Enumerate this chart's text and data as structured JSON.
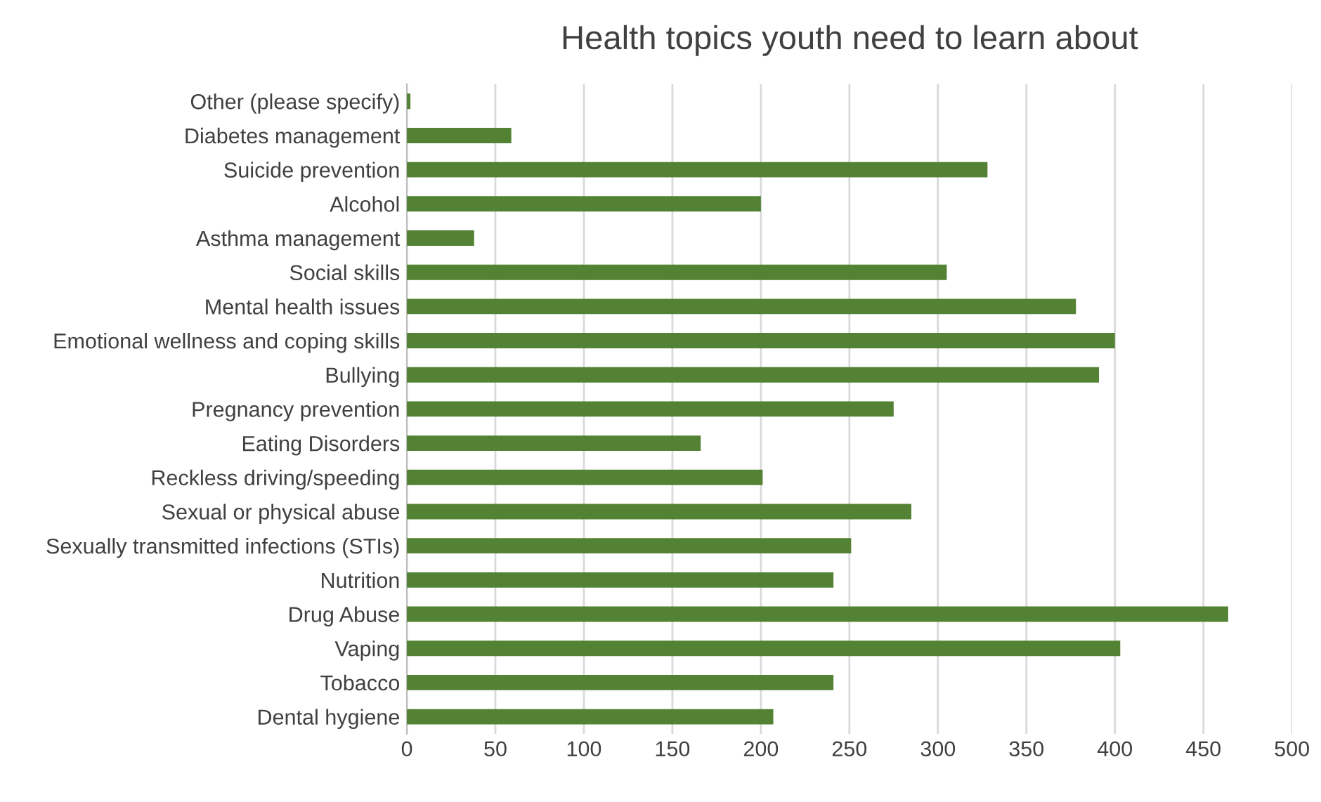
{
  "chart_data": {
    "type": "bar",
    "orientation": "horizontal",
    "title": "Health topics youth need to learn about",
    "categories": [
      "Other (please specify)",
      "Diabetes management",
      "Suicide prevention",
      "Alcohol",
      "Asthma management",
      "Social skills",
      "Mental health issues",
      "Emotional wellness and coping skills",
      "Bullying",
      "Pregnancy prevention",
      "Eating Disorders",
      "Reckless driving/speeding",
      "Sexual or physical abuse",
      "Sexually transmitted infections (STIs)",
      "Nutrition",
      "Drug Abuse",
      "Vaping",
      "Tobacco",
      "Dental hygiene"
    ],
    "values": [
      2,
      59,
      328,
      200,
      38,
      305,
      378,
      400,
      391,
      275,
      166,
      201,
      285,
      251,
      241,
      464,
      403,
      241,
      207
    ],
    "color": "#548235",
    "xlim": [
      0,
      500
    ],
    "xticks": [
      0,
      50,
      100,
      150,
      200,
      250,
      300,
      350,
      400,
      450,
      500
    ],
    "grid": "x"
  }
}
